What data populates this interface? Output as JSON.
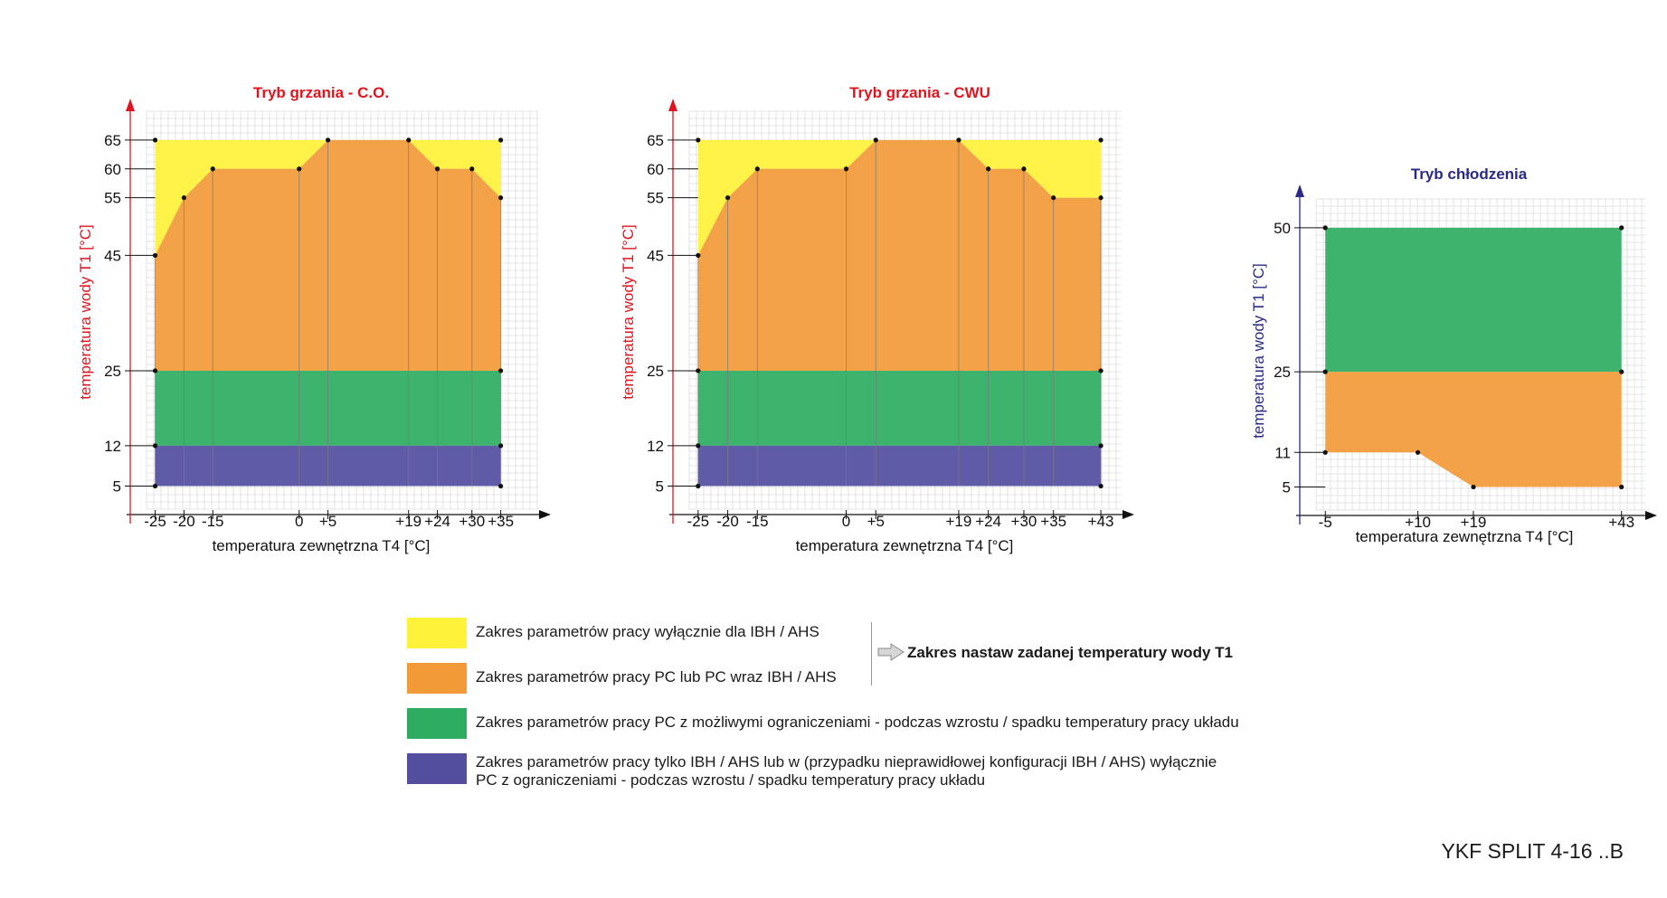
{
  "colors": {
    "yellow": "#FFF23A",
    "orange": "#F39A38",
    "green": "#2EAD62",
    "purple": "#544E9F",
    "heat_axis": "#E0141E",
    "cool_axis": "#2A2A86"
  },
  "chart_data": [
    {
      "type": "area",
      "title": "Tryb grzania - C.O.",
      "xlabel": "temperatura zewnętrzna T4 [°C]",
      "ylabel": "temperatura wody T1 [°C]",
      "x_ticks": [
        "-25",
        "-20",
        "-15",
        "0",
        "+5",
        "+19",
        "+24",
        "+30",
        "+35"
      ],
      "y_ticks": [
        "5",
        "12",
        "25",
        "45",
        "55",
        "60",
        "65"
      ],
      "xlim": [
        -26.5,
        41.5
      ],
      "ylim": [
        1,
        70
      ],
      "series": [
        {
          "name": "Zakres parametrów pracy wyłącznie dla IBH / AHS",
          "color_key": "yellow",
          "upper": {
            "x": [
              -25,
              35
            ],
            "y": [
              65,
              65
            ]
          }
        },
        {
          "name": "Zakres parametrów pracy PC lub PC wraz IBH / AHS",
          "color_key": "orange",
          "upper": {
            "x": [
              -25,
              -20,
              -15,
              0,
              5,
              19,
              24,
              30,
              35
            ],
            "y": [
              45,
              55,
              60,
              60,
              65,
              65,
              60,
              60,
              55
            ]
          }
        },
        {
          "name": "Zakres parametrów pracy PC z możliwymi ograniczeniami",
          "color_key": "green",
          "upper": {
            "x": [
              -25,
              35
            ],
            "y": [
              25,
              25
            ]
          }
        },
        {
          "name": "Zakres parametrów pracy tylko IBH / AHS",
          "color_key": "purple",
          "upper": {
            "x": [
              -25,
              35
            ],
            "y": [
              12,
              12
            ]
          },
          "lower_y": 5
        }
      ]
    },
    {
      "type": "area",
      "title": "Tryb grzania - CWU",
      "xlabel": "temperatura zewnętrzna T4 [°C]",
      "ylabel": "temperatura wody T1 [°C]",
      "x_ticks": [
        "-25",
        "-20",
        "-15",
        "0",
        "+5",
        "+19",
        "+24",
        "+30",
        "+35",
        "+43"
      ],
      "y_ticks": [
        "5",
        "12",
        "25",
        "45",
        "55",
        "60",
        "65"
      ],
      "xlim": [
        -26.5,
        46.5
      ],
      "ylim": [
        1,
        70
      ],
      "series": [
        {
          "name": "Zakres parametrów pracy wyłącznie dla IBH / AHS",
          "color_key": "yellow",
          "upper": {
            "x": [
              -25,
              43
            ],
            "y": [
              65,
              65
            ]
          }
        },
        {
          "name": "Zakres parametrów pracy PC lub PC wraz IBH / AHS",
          "color_key": "orange",
          "upper": {
            "x": [
              -25,
              -20,
              -15,
              0,
              5,
              19,
              24,
              30,
              35,
              43
            ],
            "y": [
              45,
              55,
              60,
              60,
              65,
              65,
              60,
              60,
              55,
              55
            ]
          }
        },
        {
          "name": "Zakres parametrów pracy PC z możliwymi ograniczeniami",
          "color_key": "green",
          "upper": {
            "x": [
              -25,
              43
            ],
            "y": [
              25,
              25
            ]
          }
        },
        {
          "name": "Zakres parametrów pracy tylko IBH / AHS",
          "color_key": "purple",
          "upper": {
            "x": [
              -25,
              43
            ],
            "y": [
              12,
              12
            ]
          },
          "lower_y": 5
        }
      ]
    },
    {
      "type": "area",
      "title": "Tryb chłodzenia",
      "xlabel": "temperatura zewnętrzna T4 [°C]",
      "ylabel": "temperatura wody T1 [°C]",
      "x_ticks": [
        "-5",
        "+10",
        "+19",
        "+43"
      ],
      "y_ticks": [
        "5",
        "11",
        "25",
        "50"
      ],
      "xlim": [
        -6.5,
        47
      ],
      "ylim": [
        1,
        55
      ],
      "series": [
        {
          "name": "Zakres parametrów pracy PC z możliwymi ograniczeniami",
          "color_key": "green",
          "upper": {
            "x": [
              -5,
              43
            ],
            "y": [
              50,
              50
            ]
          }
        },
        {
          "name": "Zakres parametrów pracy PC lub PC wraz IBH / AHS",
          "color_key": "orange",
          "upper": {
            "x": [
              -5,
              43
            ],
            "y": [
              25,
              25
            ]
          },
          "lower": {
            "x": [
              -5,
              10,
              19,
              43
            ],
            "y": [
              11,
              11,
              5,
              5
            ]
          }
        }
      ]
    }
  ],
  "legend": {
    "items": [
      {
        "color_key": "yellow",
        "text": "Zakres parametrów pracy wyłącznie dla IBH / AHS",
        "text2": ""
      },
      {
        "color_key": "orange",
        "text": "Zakres parametrów pracy PC lub  PC wraz IBH / AHS",
        "text2": ""
      },
      {
        "color_key": "green",
        "text": "Zakres parametrów pracy PC z możliwymi ograniczeniami - podczas wzrostu / spadku temperatury pracy układu",
        "text2": ""
      },
      {
        "color_key": "purple",
        "text": "Zakres parametrów pracy tylko IBH / AHS lub w (przypadku nieprawidłowej konfiguracji IBH / AHS) wyłącznie",
        "text2": "PC z ograniczeniami  - podczas wzrostu / spadku temperatury pracy układu"
      }
    ],
    "range_label": "Zakres nastaw zadanej temperatury wody T1"
  },
  "model": "YKF SPLIT 4-16 ..B"
}
